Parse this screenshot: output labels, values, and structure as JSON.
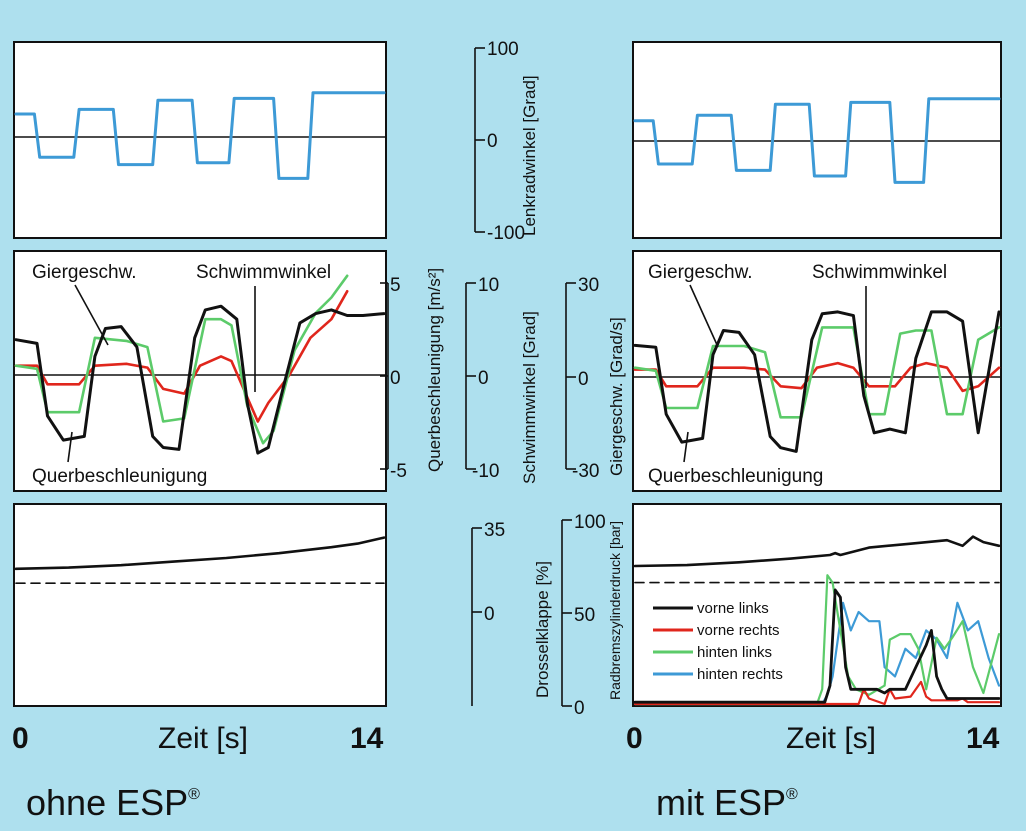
{
  "figure": {
    "left_caption": "ohne ESP",
    "right_caption": "mit ESP",
    "caption_mark": "®",
    "xlabel": "Zeit [s]",
    "x_ticks": [
      "0",
      "14"
    ]
  },
  "axes": {
    "lenkrad": {
      "label": "Lenkradwinkel [Grad]",
      "ticks": [
        "100",
        "0",
        "-100"
      ]
    },
    "quer": {
      "label": "Querbeschleunigung [m/s²]",
      "ticks": [
        "5",
        "0",
        "-5"
      ]
    },
    "schwimm": {
      "label": "Schwimmwinkel [Grad]",
      "ticks": [
        "10",
        "0",
        "-10"
      ]
    },
    "gier": {
      "label": "Giergeschw. [Grad/s]",
      "ticks": [
        "30",
        "0",
        "-30"
      ]
    },
    "drossel": {
      "label": "Drosselklappe [%]",
      "ticks": [
        "35",
        "0"
      ]
    },
    "brems": {
      "label": "Radbremszylinderdruck [bar]",
      "ticks": [
        "100",
        "50",
        "0"
      ]
    }
  },
  "annotations": {
    "giergeschw": "Giergeschw.",
    "schwimmwinkel": "Schwimmwinkel",
    "querbeschleunigung": "Querbeschleunigung"
  },
  "legend": [
    {
      "label": "vorne links",
      "color": "#111111"
    },
    {
      "label": "vorne rechts",
      "color": "#e0261c"
    },
    {
      "label": "hinten links",
      "color": "#5ccb6a"
    },
    {
      "label": "hinten rechts",
      "color": "#3d9ad6"
    }
  ],
  "colors": {
    "background": "#aee0ee",
    "steering": "#3d9ad6",
    "quer": "#111111",
    "schwimm": "#e0261c",
    "gier": "#5ccb6a"
  },
  "chart_data": [
    {
      "type": "line",
      "panel": "ohne ESP – steering",
      "xlim": [
        0,
        14
      ],
      "ylabel": "Lenkradwinkel [Grad]",
      "ylim": [
        -100,
        100
      ],
      "series": [
        {
          "x": [
            0,
            0.7,
            0.9,
            2.2,
            2.4,
            3.7,
            3.9,
            5.2,
            5.4,
            6.7,
            6.9,
            8.1,
            8.3,
            9.8,
            10.0,
            11.1,
            11.3,
            12.8,
            13.0,
            14
          ],
          "values": [
            25,
            25,
            -22,
            -22,
            30,
            30,
            -30,
            -30,
            40,
            40,
            -28,
            -28,
            42,
            42,
            -45,
            -45,
            48,
            48,
            48,
            48
          ]
        }
      ]
    },
    {
      "type": "line",
      "panel": "mit ESP – steering",
      "xlim": [
        0,
        14
      ],
      "ylabel": "Lenkradwinkel [Grad]",
      "ylim": [
        -100,
        100
      ],
      "series": [
        {
          "x": [
            0,
            0.7,
            0.9,
            2.2,
            2.4,
            3.7,
            3.9,
            5.2,
            5.4,
            6.7,
            6.9,
            8.1,
            8.3,
            9.8,
            10.0,
            11.1,
            11.3,
            12.8,
            13.0,
            14
          ],
          "values": [
            22,
            22,
            -25,
            -25,
            28,
            28,
            -32,
            -32,
            40,
            40,
            -38,
            -38,
            42,
            42,
            -45,
            -45,
            46,
            46,
            46,
            46
          ]
        }
      ]
    },
    {
      "type": "line",
      "panel": "ohne ESP – dynamics",
      "xlim": [
        0,
        14
      ],
      "series": [
        {
          "name": "Querbeschleunigung",
          "axis": "Querbeschleunigung [m/s²]",
          "ylim": [
            -5,
            5
          ],
          "x": [
            0,
            0.8,
            1.2,
            1.8,
            2.6,
            3.0,
            3.4,
            4.0,
            4.6,
            5.2,
            5.6,
            6.2,
            6.8,
            7.2,
            7.8,
            8.4,
            8.8,
            9.2,
            9.6,
            10.2,
            10.8,
            11.4,
            12.0,
            12.6,
            13.2,
            14
          ],
          "values": [
            1.9,
            1.7,
            -2.2,
            -3.5,
            -3.3,
            1.0,
            2.5,
            2.6,
            1.5,
            -3.3,
            -3.9,
            -4.0,
            2.0,
            3.5,
            3.7,
            3.0,
            -1.5,
            -4.2,
            -3.9,
            -0.5,
            2.8,
            3.3,
            3.5,
            3.2,
            3.2,
            3.3
          ]
        },
        {
          "name": "Schwimmwinkel",
          "axis": "Schwimmwinkel [Grad]",
          "ylim": [
            -10,
            10
          ],
          "x": [
            0,
            0.8,
            1.2,
            2.4,
            3.0,
            4.2,
            5.0,
            5.6,
            6.4,
            7.0,
            7.8,
            8.2,
            9.2,
            9.6,
            10.4,
            11.2,
            12.0,
            12.6
          ],
          "values": [
            1.0,
            1.0,
            -1.0,
            -1.0,
            1.0,
            1.2,
            0.8,
            -1.5,
            -2.0,
            1.0,
            2.0,
            1.5,
            -5.0,
            -3.0,
            0.0,
            4.0,
            6.0,
            9.0
          ]
        },
        {
          "name": "Giergeschw.",
          "axis": "Giergeschw. [Grad/s]",
          "ylim": [
            -30,
            30
          ],
          "x": [
            0,
            0.8,
            1.2,
            2.4,
            3.0,
            4.2,
            5.0,
            5.6,
            6.4,
            7.2,
            7.8,
            8.2,
            8.8,
            9.4,
            9.8,
            10.6,
            11.4,
            12.0,
            12.6
          ],
          "values": [
            3,
            2,
            -12,
            -12,
            12,
            11,
            9,
            -15,
            -14,
            18,
            18,
            16,
            -10,
            -22,
            -18,
            8,
            20,
            25,
            32
          ]
        }
      ]
    },
    {
      "type": "line",
      "panel": "mit ESP – dynamics",
      "xlim": [
        0,
        14
      ],
      "series": [
        {
          "name": "Querbeschleunigung",
          "axis": "Querbeschleunigung [m/s²]",
          "ylim": [
            -5,
            5
          ],
          "x": [
            0,
            0.8,
            1.2,
            1.8,
            2.6,
            3.0,
            3.4,
            4.0,
            4.6,
            5.2,
            5.6,
            6.2,
            6.8,
            7.2,
            7.8,
            8.4,
            8.8,
            9.2,
            9.8,
            10.4,
            10.8,
            11.4,
            12.0,
            12.6,
            13.2,
            14
          ],
          "values": [
            1.7,
            1.6,
            -2.0,
            -3.5,
            -3.3,
            1.2,
            2.5,
            2.4,
            1.2,
            -3.2,
            -3.8,
            -4.0,
            2.0,
            3.4,
            3.5,
            3.3,
            -1.0,
            -3.0,
            -2.8,
            -3.0,
            1.0,
            3.5,
            3.5,
            3.0,
            -3.0,
            3.5
          ]
        },
        {
          "name": "Schwimmwinkel",
          "axis": "Schwimmwinkel [Grad]",
          "ylim": [
            -10,
            10
          ],
          "x": [
            0,
            0.8,
            1.2,
            2.4,
            3.0,
            4.2,
            5.0,
            5.6,
            6.4,
            7.0,
            7.8,
            8.4,
            9.0,
            10.0,
            10.6,
            11.2,
            12.0,
            12.6,
            13.2,
            14
          ],
          "values": [
            0.8,
            0.8,
            -1.0,
            -1.0,
            1.0,
            1.0,
            0.8,
            -1.0,
            -1.2,
            1.0,
            1.5,
            1.0,
            -1.0,
            -1.0,
            1.0,
            1.5,
            1.0,
            -1.5,
            -1.0,
            1.0
          ]
        },
        {
          "name": "Giergeschw.",
          "axis": "Giergeschw. [Grad/s]",
          "ylim": [
            -30,
            30
          ],
          "x": [
            0,
            0.8,
            1.2,
            2.4,
            3.0,
            4.2,
            5.0,
            5.6,
            6.4,
            7.2,
            7.8,
            8.4,
            9.0,
            9.6,
            10.2,
            10.8,
            11.4,
            12.0,
            12.6,
            13.2,
            14
          ],
          "values": [
            3,
            2,
            -10,
            -10,
            10,
            10,
            8,
            -13,
            -13,
            16,
            16,
            16,
            -12,
            -12,
            14,
            15,
            15,
            -12,
            -12,
            12,
            16
          ]
        }
      ]
    },
    {
      "type": "line",
      "panel": "ohne ESP – throttle",
      "xlim": [
        0,
        14
      ],
      "ylabel": "Drosselklappe [%]",
      "ylim": [
        -35,
        35
      ],
      "series": [
        {
          "name": "Drosselklappe",
          "x": [
            0,
            2,
            4,
            6,
            8,
            10,
            12,
            13,
            14
          ],
          "values": [
            18,
            18.5,
            19.5,
            21,
            22.5,
            24.5,
            27,
            28.5,
            31
          ]
        },
        {
          "name": "reference",
          "style": "dashed",
          "x": [
            0,
            14
          ],
          "values": [
            12,
            12
          ]
        }
      ]
    },
    {
      "type": "line",
      "panel": "mit ESP – brake pressure",
      "xlim": [
        0,
        14
      ],
      "ylabel": "Radbremszylinderdruck [bar]",
      "ylim": [
        0,
        100
      ],
      "series": [
        {
          "name": "throttle",
          "x": [
            0,
            2,
            4,
            6,
            7.5,
            7.7,
            7.9,
            9,
            10.5,
            12,
            12.6,
            13,
            13.4,
            14
          ],
          "values": [
            75,
            75.5,
            77,
            79,
            81,
            82,
            81,
            85,
            87,
            89,
            86,
            91,
            88,
            86
          ]
        },
        {
          "name": "reference",
          "style": "dashed",
          "x": [
            0,
            14
          ],
          "values": [
            66,
            66
          ]
        },
        {
          "name": "vorne links",
          "x": [
            0,
            7.3,
            7.5,
            7.7,
            7.9,
            8.1,
            8.3,
            9.3,
            9.6,
            9.8,
            10.0,
            10.4,
            11.2,
            11.4,
            11.6,
            11.8,
            12.0,
            14
          ],
          "values": [
            1,
            1,
            10,
            62,
            58,
            20,
            8,
            8,
            6,
            8,
            8,
            8,
            32,
            40,
            15,
            8,
            3,
            3
          ]
        },
        {
          "name": "vorne rechts",
          "x": [
            0,
            8.6,
            8.8,
            9.0,
            9.6,
            9.8,
            10.0,
            10.6,
            11.0,
            11.2,
            11.4,
            12.4,
            12.6,
            12.8,
            14
          ],
          "values": [
            0,
            0,
            8,
            3,
            0,
            8,
            3,
            4,
            12,
            4,
            2,
            2,
            3,
            1,
            1
          ]
        },
        {
          "name": "hinten links",
          "x": [
            0,
            7.0,
            7.2,
            7.4,
            7.6,
            7.9,
            8.2,
            8.5,
            9.0,
            9.6,
            9.8,
            10.2,
            10.6,
            10.9,
            11.2,
            11.6,
            11.9,
            12.2,
            12.6,
            13.0,
            13.4,
            14
          ],
          "values": [
            0,
            0,
            8,
            70,
            66,
            40,
            15,
            8,
            5,
            10,
            35,
            38,
            38,
            30,
            8,
            36,
            30,
            36,
            45,
            20,
            6,
            38
          ]
        },
        {
          "name": "hinten rechts",
          "x": [
            0,
            7.2,
            7.4,
            7.6,
            7.8,
            8.0,
            8.3,
            8.6,
            9.0,
            9.4,
            9.6,
            10.0,
            10.4,
            10.8,
            11.2,
            11.6,
            12.0,
            12.4,
            12.8,
            13.2,
            13.6,
            14
          ],
          "values": [
            0,
            0,
            5,
            15,
            35,
            55,
            40,
            50,
            45,
            45,
            20,
            15,
            30,
            25,
            40,
            35,
            25,
            55,
            40,
            45,
            25,
            10
          ]
        }
      ]
    }
  ]
}
